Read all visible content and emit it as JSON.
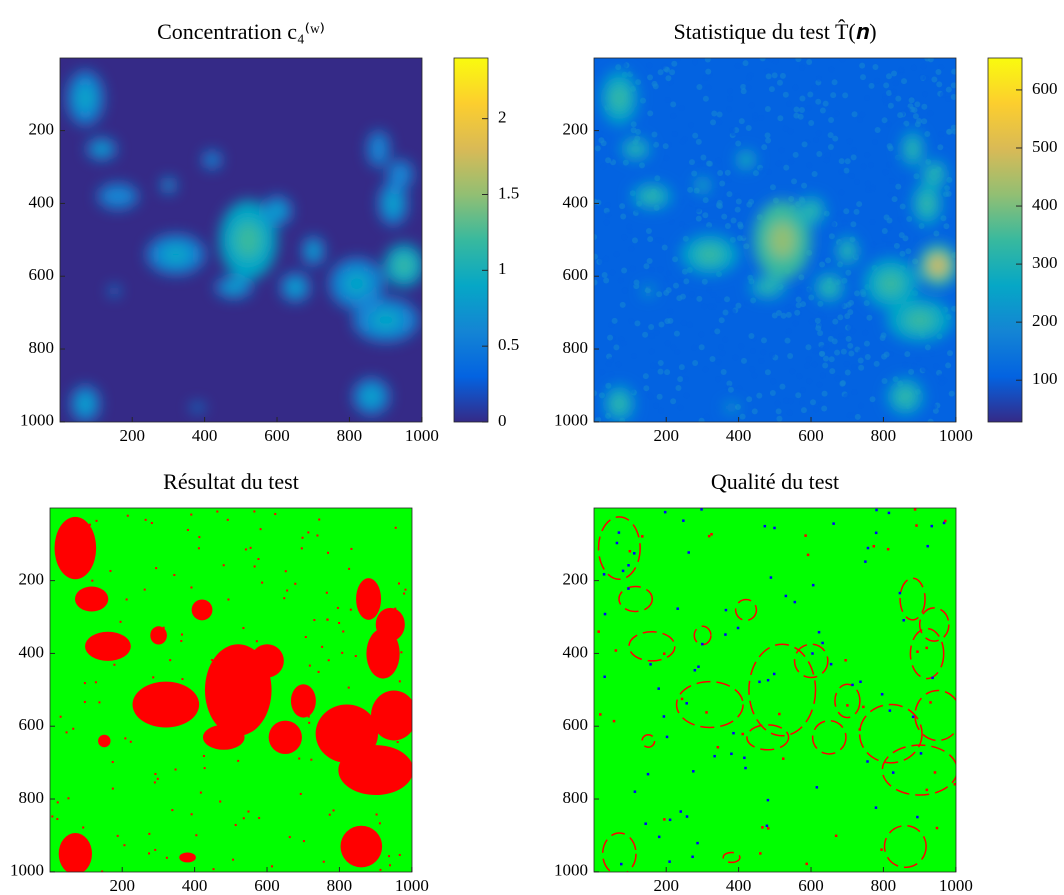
{
  "chart_data": [
    {
      "type": "heatmap",
      "title": "Concentration c₄⁽ʷ⁾",
      "xlim": [
        0.5,
        1000.5
      ],
      "ylim": [
        0.5,
        1000.5
      ],
      "y_reversed": true,
      "xticks": [
        200,
        400,
        600,
        800,
        1000
      ],
      "yticks": [
        200,
        400,
        600,
        800,
        1000
      ],
      "colormap": [
        "#352a87",
        "#0363e1",
        "#1485d4",
        "#06a7c6",
        "#38b99e",
        "#92bf73",
        "#d9ba56",
        "#fcce2e",
        "#f9fb0e"
      ],
      "clim": [
        0,
        2.4
      ],
      "cticks": [
        0,
        0.5,
        1,
        1.5,
        2
      ]
    },
    {
      "type": "heatmap",
      "title": "Statistique du test T̂(𝒏)",
      "xlim": [
        0.5,
        1000.5
      ],
      "ylim": [
        0.5,
        1000.5
      ],
      "y_reversed": true,
      "xticks": [
        200,
        400,
        600,
        800,
        1000
      ],
      "yticks": [
        200,
        400,
        600,
        800,
        1000
      ],
      "colormap": [
        "#352a87",
        "#0363e1",
        "#1485d4",
        "#06a7c6",
        "#38b99e",
        "#92bf73",
        "#d9ba56",
        "#fcce2e",
        "#f9fb0e"
      ],
      "clim": [
        28,
        655
      ],
      "cticks": [
        100,
        200,
        300,
        400,
        500,
        600
      ]
    },
    {
      "type": "mask",
      "title": "Résultat du test",
      "xlim": [
        0.5,
        1000.5
      ],
      "ylim": [
        0.5,
        1000.5
      ],
      "y_reversed": true,
      "xticks": [
        200,
        400,
        600,
        800,
        1000
      ],
      "yticks": [
        200,
        400,
        600,
        800,
        1000
      ],
      "colors": [
        "#00ff00",
        "#ff0000"
      ]
    },
    {
      "type": "quality",
      "title": "Qualité du test",
      "xlim": [
        0.5,
        1000.5
      ],
      "ylim": [
        0.5,
        1000.5
      ],
      "y_reversed": true,
      "xticks": [
        200,
        400,
        600,
        800,
        1000
      ],
      "yticks": [
        200,
        400,
        600,
        800,
        1000
      ],
      "colors": [
        "#00ff00",
        "#ff0000",
        "#0000ff"
      ]
    }
  ]
}
